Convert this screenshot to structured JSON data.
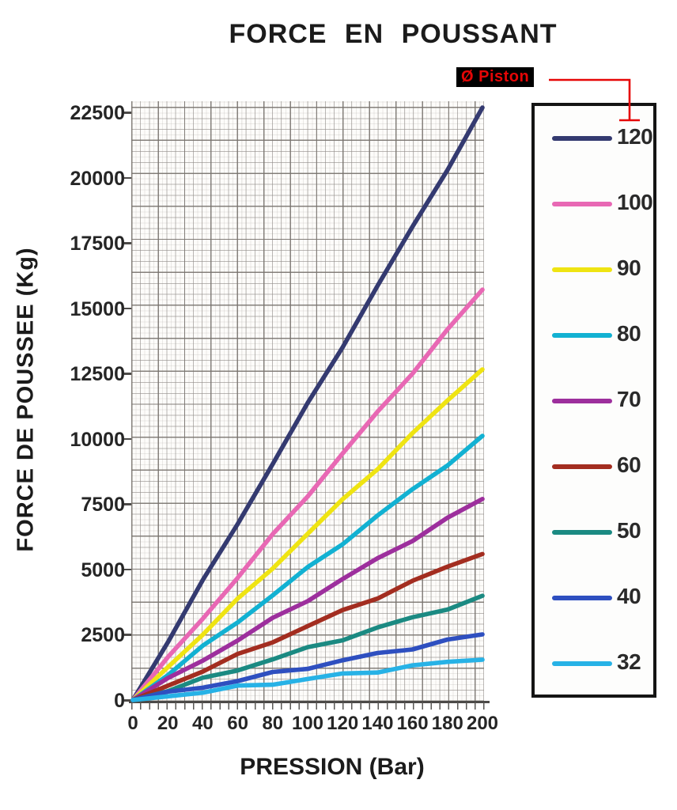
{
  "header": {
    "title": "FORCE EN POUSSANT"
  },
  "legend": {
    "pointer_label": "Ø Piston",
    "pointer_color": "#e60606",
    "box_border_color": "#141414"
  },
  "chart_data": {
    "type": "line",
    "title": "FORCE EN POUSSANT",
    "xlabel": "PRESSION (Bar)",
    "ylabel": "FORCE DE POUSSEE (Kg)",
    "legend_title": "Ø Piston",
    "legend_position": "right",
    "grid": "fine graph paper",
    "xlim": [
      0,
      200
    ],
    "ylim": [
      0,
      22500
    ],
    "x": [
      0,
      20,
      40,
      60,
      80,
      100,
      120,
      140,
      160,
      180,
      200
    ],
    "xticks": [
      0,
      20,
      40,
      60,
      80,
      100,
      120,
      140,
      160,
      180,
      200
    ],
    "yticks": [
      0,
      2500,
      5000,
      7500,
      10000,
      12500,
      15000,
      17500,
      20000,
      22500
    ],
    "series": [
      {
        "name": "120",
        "color": "#343a70",
        "values": [
          0,
          2262,
          4524,
          6786,
          9048,
          11310,
          13572,
          15834,
          18096,
          20358,
          22619
        ]
      },
      {
        "name": "100",
        "color": "#e868b4",
        "values": [
          0,
          1571,
          3142,
          4712,
          6283,
          7854,
          9425,
          10996,
          12566,
          14137,
          15708
        ]
      },
      {
        "name": "90",
        "color": "#efe412",
        "values": [
          0,
          1272,
          2545,
          3817,
          5089,
          6362,
          7634,
          8906,
          10179,
          11451,
          12723
        ]
      },
      {
        "name": "80",
        "color": "#12b1d2",
        "values": [
          0,
          1005,
          2011,
          3016,
          4021,
          5027,
          6032,
          7037,
          8042,
          9048,
          10053
        ]
      },
      {
        "name": "70",
        "color": "#9d2f9d",
        "values": [
          0,
          770,
          1539,
          2309,
          3079,
          3848,
          4618,
          5388,
          6158,
          6927,
          7697
        ]
      },
      {
        "name": "60",
        "color": "#a32d20",
        "values": [
          0,
          565,
          1131,
          1696,
          2262,
          2827,
          3393,
          3958,
          4524,
          5089,
          5655
        ]
      },
      {
        "name": "50",
        "color": "#1b8a82",
        "values": [
          0,
          393,
          785,
          1178,
          1571,
          1963,
          2356,
          2749,
          3142,
          3534,
          3927
        ]
      },
      {
        "name": "40",
        "color": "#2e4fc0",
        "values": [
          0,
          251,
          503,
          754,
          1005,
          1257,
          1508,
          1759,
          2011,
          2262,
          2513
        ]
      },
      {
        "name": "32",
        "color": "#27b2e6",
        "values": [
          0,
          161,
          322,
          483,
          643,
          804,
          965,
          1126,
          1287,
          1448,
          1608
        ]
      }
    ]
  }
}
